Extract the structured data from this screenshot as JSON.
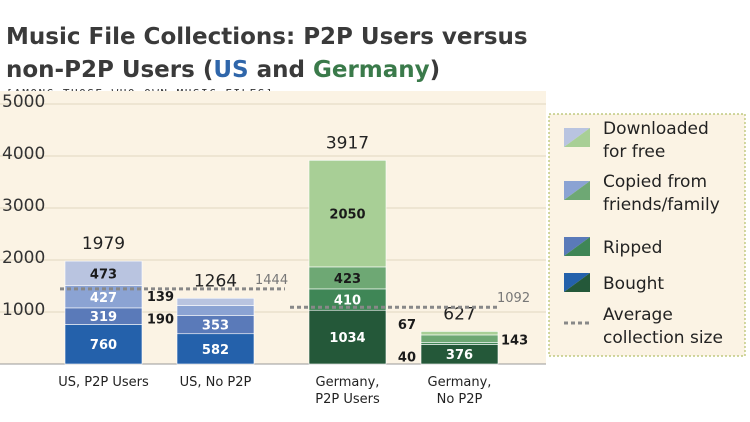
{
  "header": {
    "title_line1": "Music File Collections: P2P Users versus",
    "title_line2_pre": "non-P2P Users (",
    "title_us": "US",
    "title_and": " and ",
    "title_germany": "Germany",
    "title_line2_post": ")",
    "subtitle": "[AMONG THOSE WHO OWN MUSIC FILES]"
  },
  "chart_data": {
    "type": "bar",
    "stacked": true,
    "title": "Music File Collections: P2P Users versus non-P2P Users (US and Germany)",
    "subtitle": "[AMONG THOSE WHO OWN MUSIC FILES]",
    "y_ticks": [
      "1000",
      "2000",
      "3000",
      "4000",
      "5000"
    ],
    "ylim": [
      0,
      5000
    ],
    "grid": true,
    "legend_position": "right",
    "categories": [
      {
        "lines": [
          "US, P2P Users"
        ],
        "country": "US"
      },
      {
        "lines": [
          "US, No P2P"
        ],
        "country": "US"
      },
      {
        "lines": [
          "Germany,",
          "P2P Users"
        ],
        "country": "Germany"
      },
      {
        "lines": [
          "Germany,",
          "No P2P"
        ],
        "country": "Germany"
      }
    ],
    "series": [
      {
        "name": "Bought",
        "values": [
          760,
          582,
          1034,
          376
        ],
        "labels": [
          "760",
          "582",
          "1034",
          "376"
        ]
      },
      {
        "name": "Ripped",
        "values": [
          319,
          353,
          410,
          40
        ],
        "labels": [
          "319",
          "353",
          "410",
          "40"
        ]
      },
      {
        "name": "Copied from friends/family",
        "values": [
          427,
          190,
          423,
          143
        ],
        "labels": [
          "427",
          "190",
          "423",
          "143"
        ]
      },
      {
        "name": "Downloaded for free",
        "values": [
          473,
          139,
          2050,
          67
        ],
        "labels": [
          "473",
          "139",
          "2050",
          "67"
        ]
      }
    ],
    "totals": [
      1979,
      1264,
      3917,
      627
    ],
    "total_labels": [
      "1979",
      "1264",
      "3917",
      "627"
    ],
    "averages": [
      {
        "country": "US",
        "value": 1444,
        "label": "1444"
      },
      {
        "country": "Germany",
        "value": 1092,
        "label": "1092"
      }
    ],
    "legend": [
      {
        "lines": [
          "Downloaded",
          "for free"
        ],
        "type": "swatch",
        "us": "#b9c4e0",
        "de": "#a8cf96"
      },
      {
        "lines": [
          "Copied from",
          "friends/family"
        ],
        "type": "swatch",
        "us": "#8ba3d3",
        "de": "#6ea874"
      },
      {
        "lines": [
          "Ripped"
        ],
        "type": "swatch",
        "us": "#5a7ab9",
        "de": "#3f8656"
      },
      {
        "lines": [
          "Bought"
        ],
        "type": "swatch",
        "us": "#2461ab",
        "de": "#245839"
      },
      {
        "lines": [
          "Average",
          "collection size"
        ],
        "type": "line",
        "color": "#888888"
      }
    ],
    "colors": {
      "US": {
        "Bought": "#2461ab",
        "Ripped": "#5a7ab9",
        "Copied from friends/family": "#8ba3d3",
        "Downloaded for free": "#b9c4e0"
      },
      "Germany": {
        "Bought": "#245839",
        "Ripped": "#3f8656",
        "Copied from friends/family": "#6ea874",
        "Downloaded for free": "#a8cf96"
      },
      "average_line": "#888888",
      "plot_background": "#fbf3e4"
    }
  }
}
